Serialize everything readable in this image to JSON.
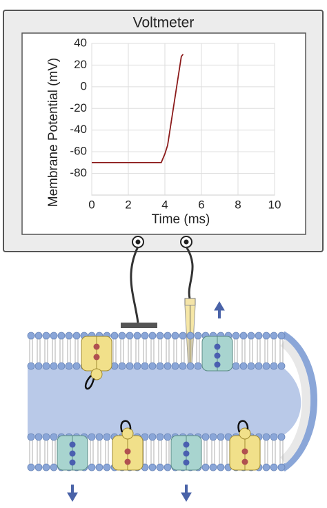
{
  "title": "Voltmeter",
  "chart_data": {
    "type": "line",
    "x_label": "Time (ms)",
    "y_label": "Membrane Potential (mV)",
    "x": [
      0,
      3.8,
      4.0,
      4.15,
      4.9,
      5.0
    ],
    "series": [
      {
        "color": "#8b1a1a",
        "values": [
          -70,
          -70,
          -62,
          -54,
          28,
          30
        ]
      }
    ],
    "xlim": [
      0,
      10
    ],
    "xticks": [
      0,
      2,
      4,
      6,
      8,
      10
    ],
    "ylim": [
      -100,
      40
    ],
    "yticks": [
      40,
      20,
      0,
      -20,
      -40,
      -60,
      -80
    ],
    "grid": true
  }
}
